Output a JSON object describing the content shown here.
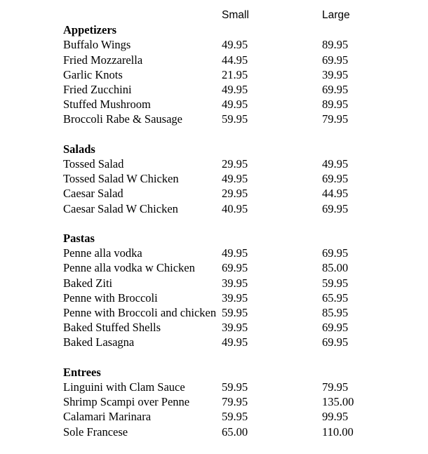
{
  "header": {
    "small": "Small",
    "large": "Large"
  },
  "sections": [
    {
      "title": "Appetizers",
      "items": [
        {
          "name": "Buffalo Wings",
          "small": "49.95",
          "large": "89.95"
        },
        {
          "name": "Fried Mozzarella",
          "small": "44.95",
          "large": "69.95"
        },
        {
          "name": "Garlic Knots",
          "small": "21.95",
          "large": "39.95"
        },
        {
          "name": "Fried Zucchini",
          "small": "49.95",
          "large": "69.95"
        },
        {
          "name": "Stuffed Mushroom",
          "small": "49.95",
          "large": "89.95"
        },
        {
          "name": "Broccoli Rabe & Sausage",
          "small": "59.95",
          "large": "79.95"
        }
      ]
    },
    {
      "title": "Salads",
      "items": [
        {
          "name": "Tossed Salad",
          "small": "29.95",
          "large": "49.95"
        },
        {
          "name": "Tossed Salad W Chicken",
          "small": "49.95",
          "large": "69.95"
        },
        {
          "name": "Caesar Salad",
          "small": "29.95",
          "large": "44.95"
        },
        {
          "name": "Caesar Salad W Chicken",
          "small": "40.95",
          "large": "69.95"
        }
      ]
    },
    {
      "title": "Pastas",
      "items": [
        {
          "name": "Penne alla vodka",
          "small": "49.95",
          "large": "69.95"
        },
        {
          "name": "Penne alla vodka w Chicken",
          "small": "69.95",
          "large": "85.00"
        },
        {
          "name": "Baked Ziti",
          "small": "39.95",
          "large": "59.95"
        },
        {
          "name": "Penne with Broccoli",
          "small": "39.95",
          "large": "65.95"
        },
        {
          "name": "Penne with Broccoli and chicken",
          "small": "59.95",
          "large": "85.95"
        },
        {
          "name": "Baked Stuffed Shells",
          "small": "39.95",
          "large": "69.95"
        },
        {
          "name": "Baked Lasagna",
          "small": "49.95",
          "large": "69.95"
        }
      ]
    },
    {
      "title": "Entrees",
      "items": [
        {
          "name": "Linguini with Clam Sauce",
          "small": "59.95",
          "large": "79.95"
        },
        {
          "name": "Shrimp Scampi over Penne",
          "small": "79.95",
          "large": "135.00"
        },
        {
          "name": "Calamari Marinara",
          "small": "59.95",
          "large": "99.95"
        },
        {
          "name": "Sole Francese",
          "small": "65.00",
          "large": "110.00"
        }
      ]
    }
  ]
}
